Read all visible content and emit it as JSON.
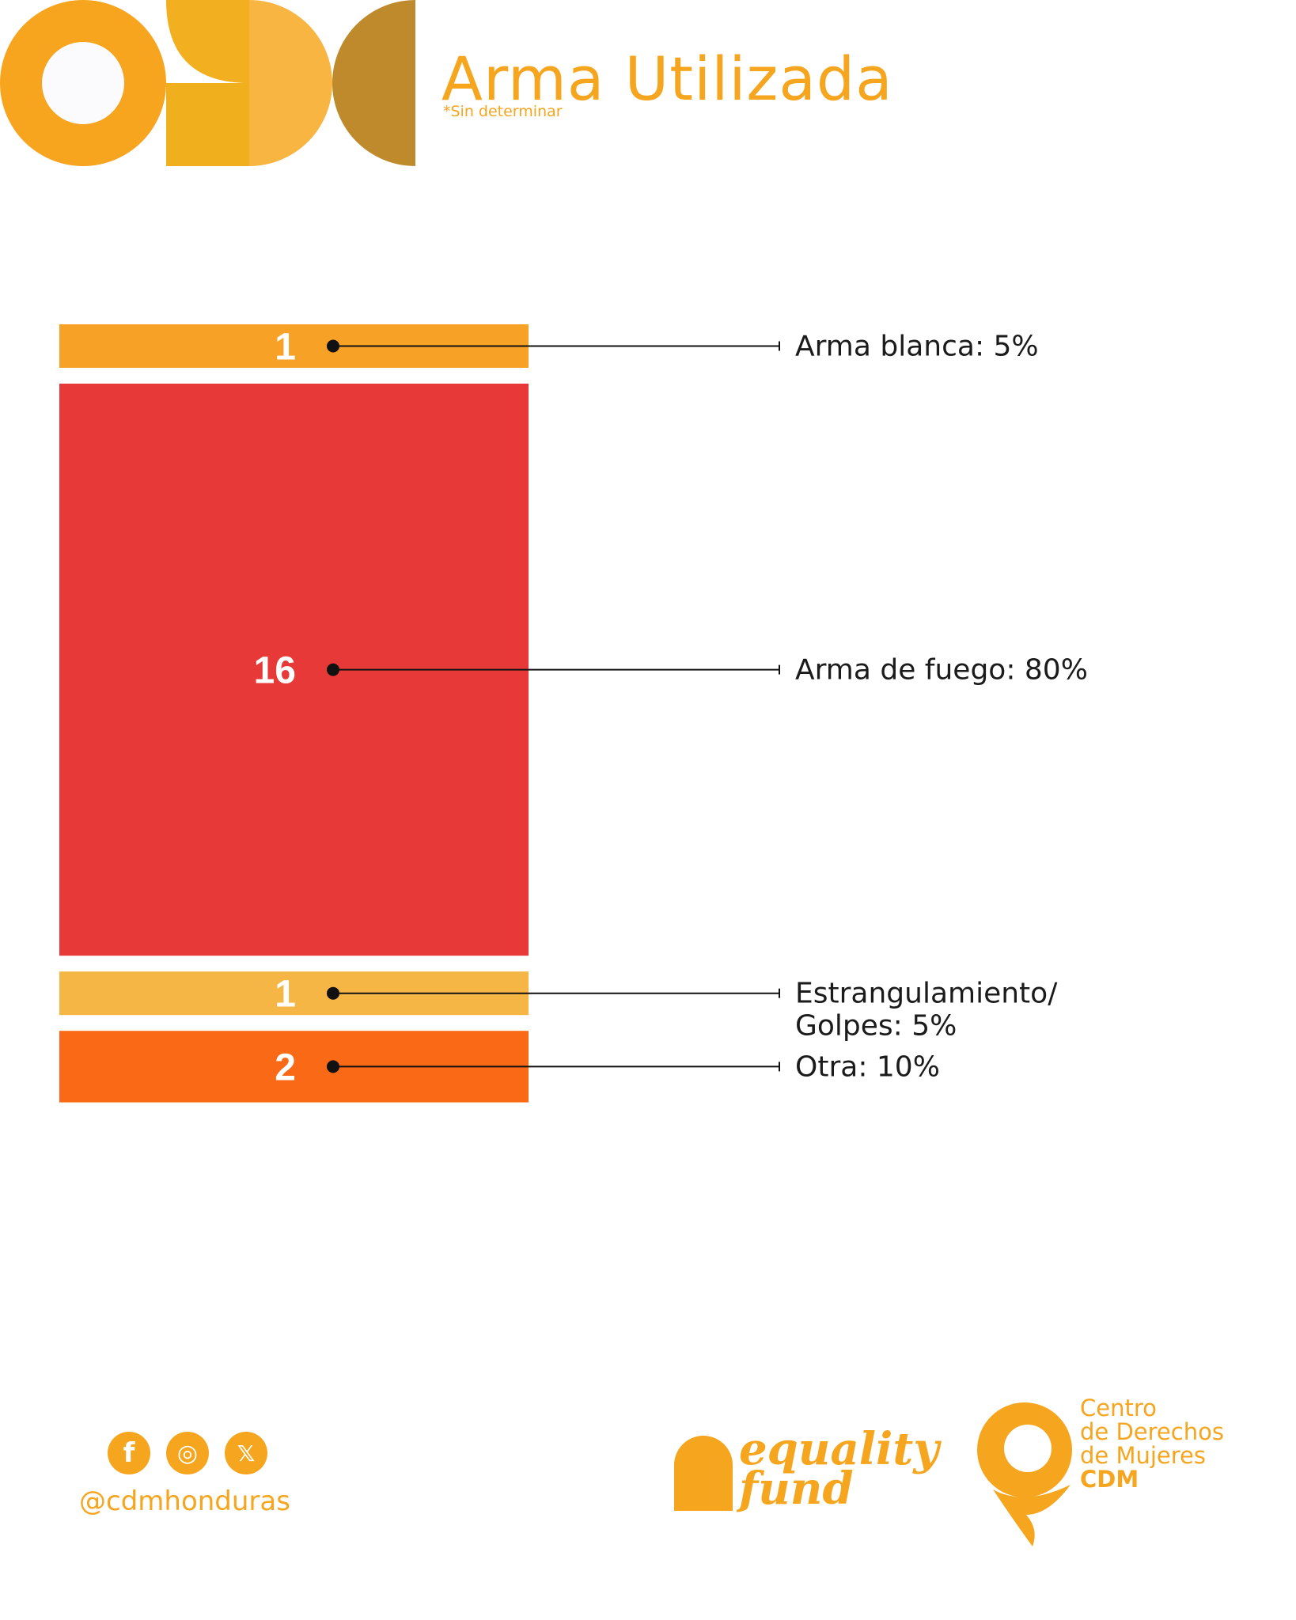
{
  "header": {
    "title": "Arma Utilizada",
    "subtitle": "*Sin determinar"
  },
  "colors": {
    "accent": "#f6a51f",
    "arma_blanca": "#f8a127",
    "arma_de_fuego": "#e73a38",
    "estrangulamiento": "#f6b645",
    "otra": "#fa6916"
  },
  "chart_data": {
    "type": "bar",
    "orientation": "stacked-horizontal-bands",
    "categories": [
      "Arma blanca",
      "Arma de fuego",
      "Estrangulamiento/ Golpes",
      "Otra"
    ],
    "values": [
      1,
      16,
      1,
      2
    ],
    "percentages": [
      5,
      80,
      5,
      10
    ],
    "value_labels": [
      "1",
      "16",
      "1",
      "2"
    ],
    "labels": [
      [
        "Arma blanca: 5%"
      ],
      [
        "Arma de fuego: 80%"
      ],
      [
        "Estrangulamiento/",
        "Golpes: 5%"
      ],
      [
        "Otra: 10%"
      ]
    ],
    "colors": [
      "#f8a127",
      "#e73a38",
      "#f6b645",
      "#fa6916"
    ]
  },
  "footer": {
    "social_icons": [
      "facebook-icon",
      "instagram-icon",
      "x-icon"
    ],
    "social_glyphs": [
      "f",
      "◎",
      "𝕏"
    ],
    "handle": "@cdmhonduras",
    "equality_fund": {
      "line1": "equality",
      "line2": "fund"
    },
    "cdm": {
      "line1": "Centro",
      "line2": "de Derechos",
      "line3": "de Mujeres",
      "line4": "CDM"
    }
  }
}
